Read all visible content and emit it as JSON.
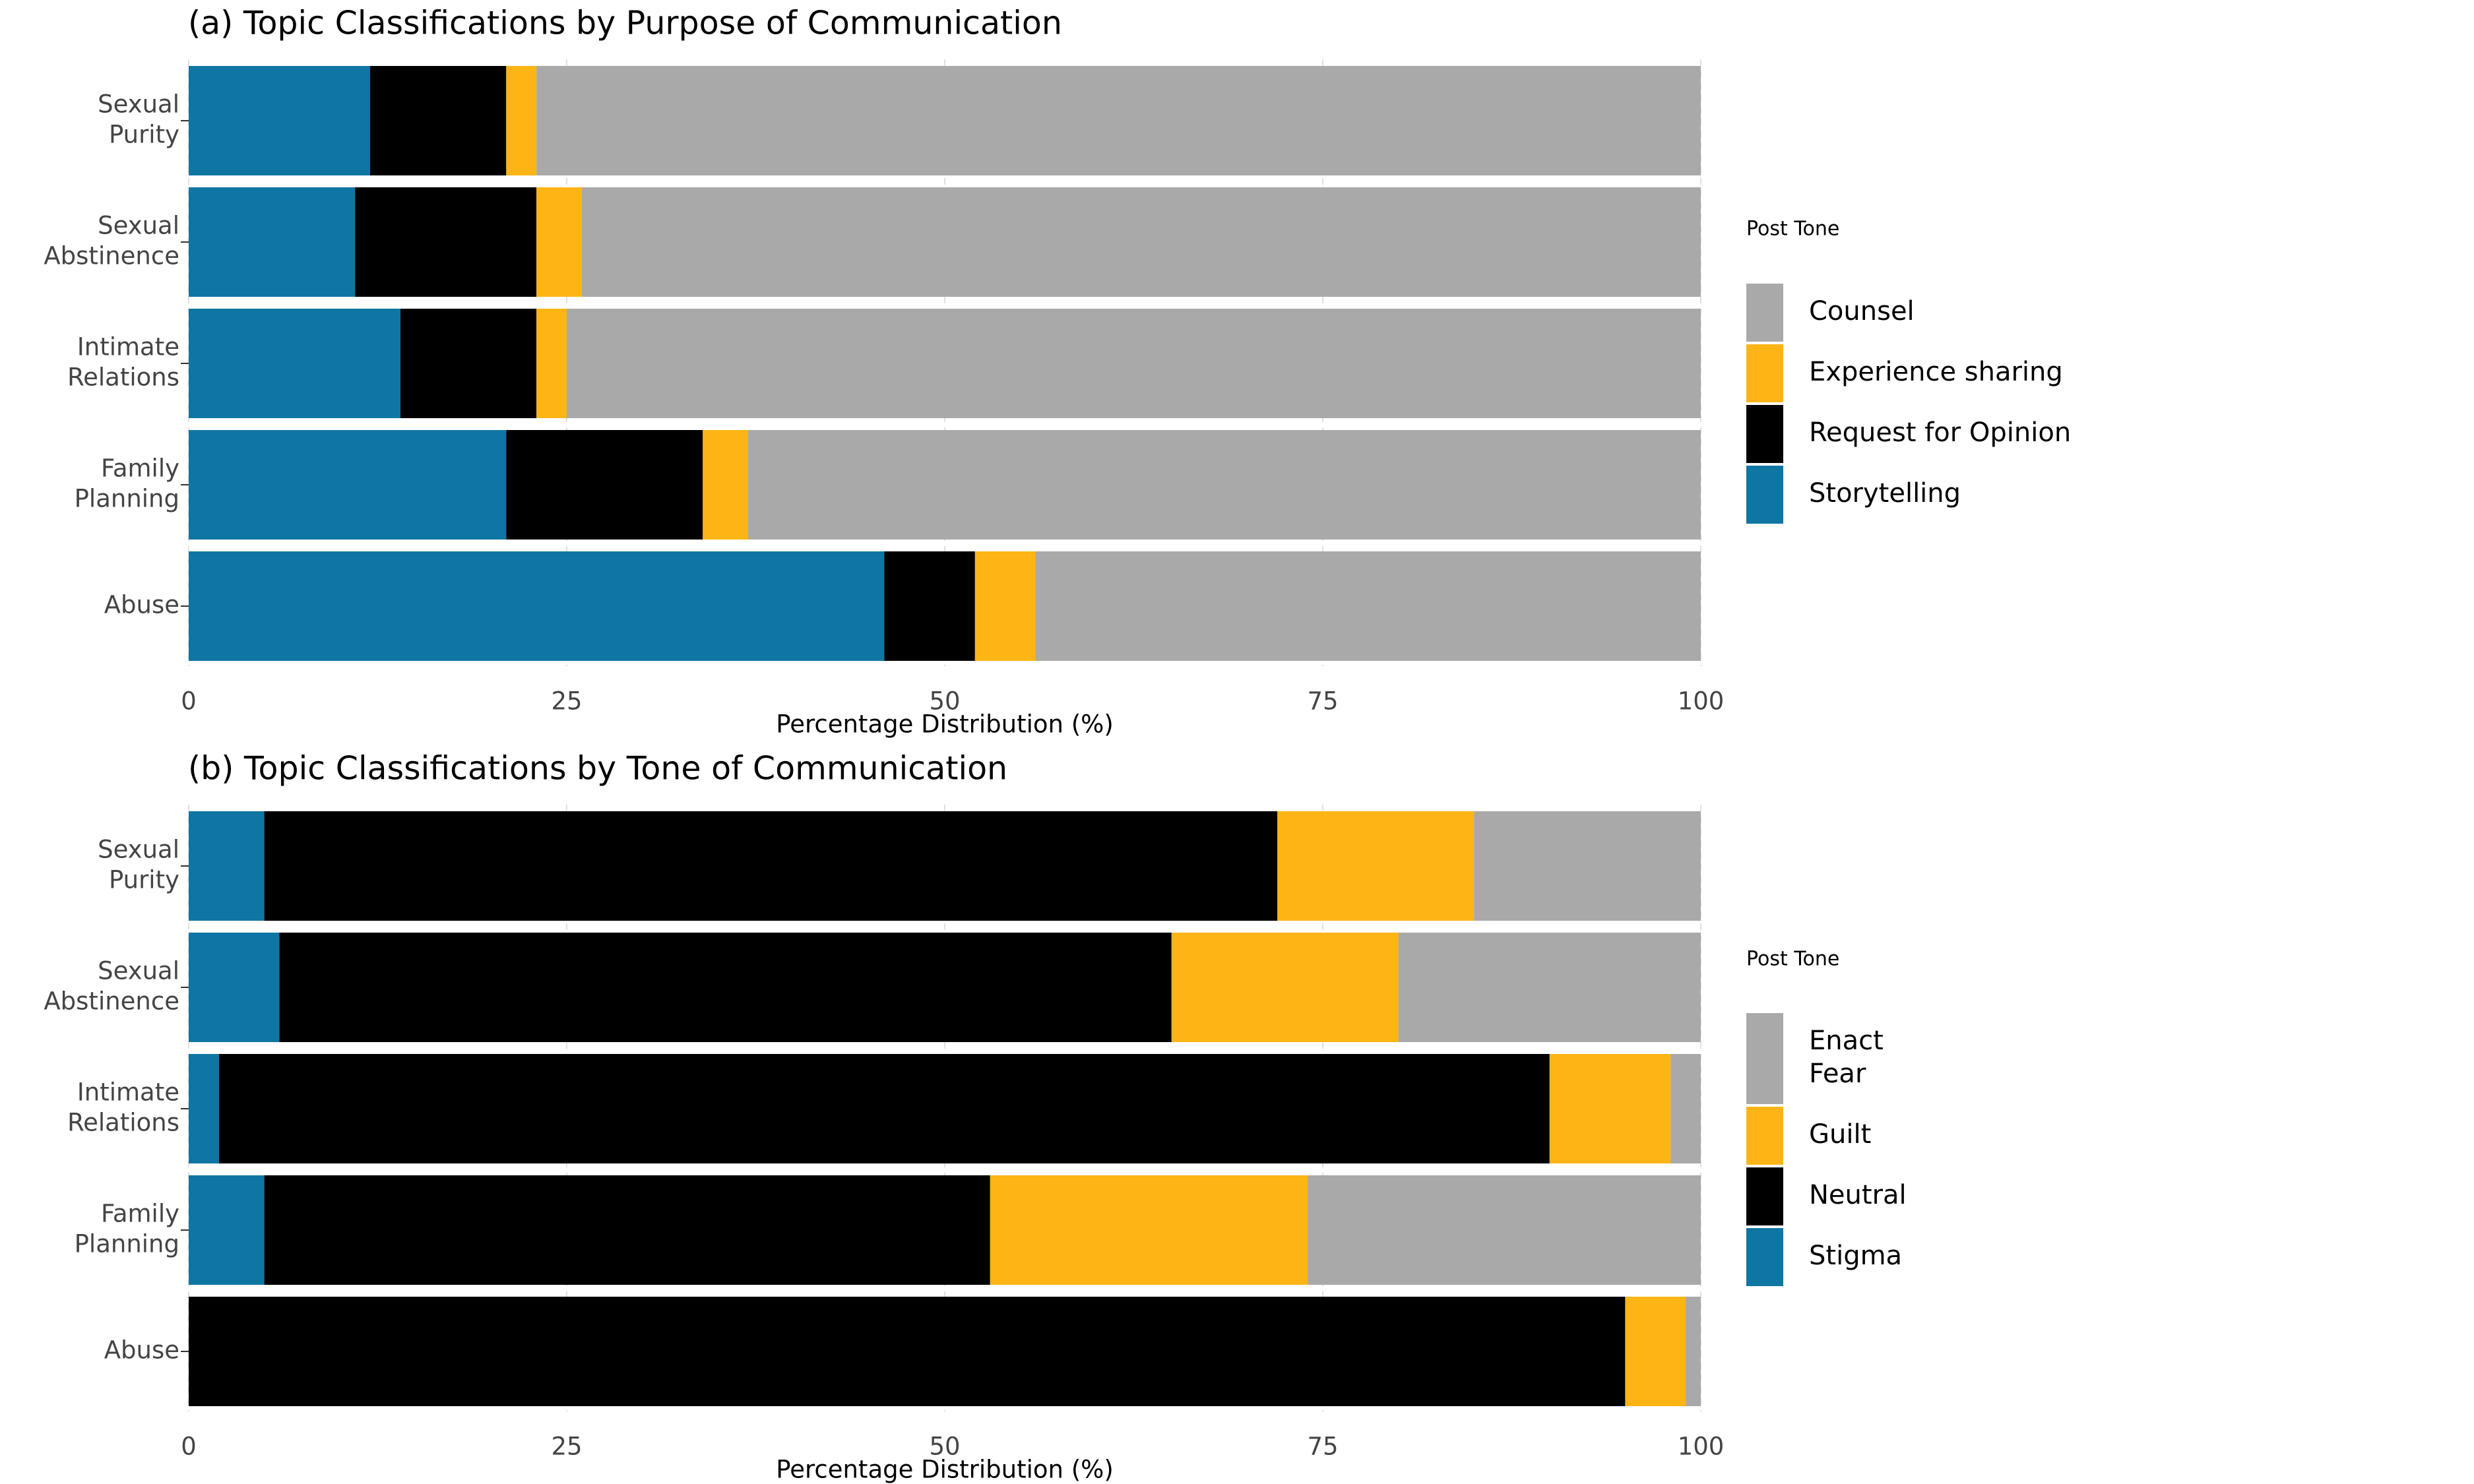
{
  "chart_data": [
    {
      "type": "bar",
      "orientation": "horizontal",
      "stacked": true,
      "title": "(a) Topic Classifications by Purpose of Communication",
      "xlabel": "Percentage Distribution (%)",
      "xlim": [
        0,
        100
      ],
      "xticks": [
        "0",
        "25",
        "50",
        "75",
        "100"
      ],
      "grid": true,
      "legend_title": "Post Tone",
      "legend_position": "right",
      "categories": [
        "Sexual\nPurity",
        "Sexual\nAbstinence",
        "Intimate\nRelations",
        "Family\nPlanning",
        "Abuse"
      ],
      "series": [
        {
          "name": "Storytelling",
          "color": "#0F76A3",
          "values": [
            12,
            11,
            14,
            21,
            46
          ]
        },
        {
          "name": "Request for Opinion",
          "color": "#000000",
          "values": [
            9,
            12,
            9,
            13,
            6
          ]
        },
        {
          "name": "Experience sharing",
          "color": "#FDB515",
          "values": [
            2,
            3,
            2,
            3,
            4
          ]
        },
        {
          "name": "Counsel",
          "color": "#A9A9A9",
          "values": [
            77,
            74,
            75,
            63,
            44
          ]
        }
      ],
      "legend_order": [
        "Counsel",
        "Experience sharing",
        "Request for Opinion",
        "Storytelling"
      ]
    },
    {
      "type": "bar",
      "orientation": "horizontal",
      "stacked": true,
      "title": "(b) Topic Classifications by Tone of Communication",
      "xlabel": "Percentage Distribution (%)",
      "xlim": [
        0,
        100
      ],
      "xticks": [
        "0",
        "25",
        "50",
        "75",
        "100"
      ],
      "grid": true,
      "legend_title": "Post Tone",
      "legend_position": "right",
      "categories": [
        "Sexual\nPurity",
        "Sexual\nAbstinence",
        "Intimate\nRelations",
        "Family\nPlanning",
        "Abuse"
      ],
      "series": [
        {
          "name": "Stigma",
          "color": "#0F76A3",
          "values": [
            5,
            6,
            2,
            5,
            0
          ]
        },
        {
          "name": "Neutral",
          "color": "#000000",
          "values": [
            67,
            59,
            88,
            48,
            95
          ]
        },
        {
          "name": "Guilt",
          "color": "#FDB515",
          "values": [
            13,
            15,
            8,
            21,
            4
          ]
        },
        {
          "name": "Enact\nFear",
          "color": "#A9A9A9",
          "values": [
            15,
            20,
            2,
            26,
            1
          ]
        }
      ],
      "legend_order": [
        "Enact\nFear",
        "Guilt",
        "Neutral",
        "Stigma"
      ]
    }
  ]
}
